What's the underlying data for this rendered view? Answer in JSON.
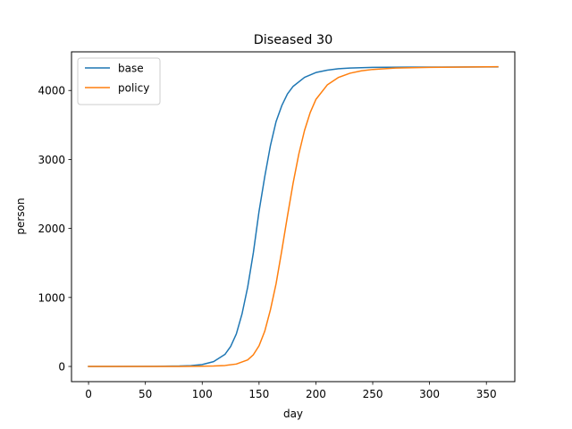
{
  "chart_data": {
    "type": "line",
    "title": "Diseased 30",
    "xlabel": "day",
    "ylabel": "person",
    "xlim": [
      -15,
      375
    ],
    "ylim": [
      -220,
      4560
    ],
    "xticks": [
      0,
      50,
      100,
      150,
      200,
      250,
      300,
      350
    ],
    "yticks": [
      0,
      1000,
      2000,
      3000,
      4000
    ],
    "grid": false,
    "legend_position": "top-left",
    "series": [
      {
        "name": "base",
        "color": "#1f77b4",
        "x": [
          0,
          60,
          80,
          90,
          100,
          110,
          120,
          125,
          130,
          135,
          140,
          145,
          150,
          155,
          160,
          165,
          170,
          175,
          180,
          190,
          200,
          210,
          220,
          230,
          250,
          280,
          320,
          360
        ],
        "y": [
          0,
          2,
          6,
          12,
          28,
          70,
          175,
          290,
          470,
          760,
          1150,
          1650,
          2250,
          2750,
          3200,
          3550,
          3780,
          3950,
          4060,
          4190,
          4260,
          4295,
          4315,
          4325,
          4335,
          4338,
          4340,
          4342
        ]
      },
      {
        "name": "policy",
        "color": "#ff7f0e",
        "x": [
          0,
          80,
          100,
          110,
          120,
          130,
          140,
          145,
          150,
          155,
          160,
          165,
          170,
          175,
          180,
          185,
          190,
          195,
          200,
          210,
          220,
          230,
          240,
          250,
          270,
          300,
          330,
          360
        ],
        "y": [
          0,
          1,
          3,
          6,
          14,
          35,
          95,
          170,
          300,
          510,
          820,
          1200,
          1680,
          2180,
          2660,
          3080,
          3420,
          3680,
          3870,
          4080,
          4190,
          4250,
          4285,
          4305,
          4325,
          4335,
          4340,
          4345
        ]
      }
    ]
  }
}
